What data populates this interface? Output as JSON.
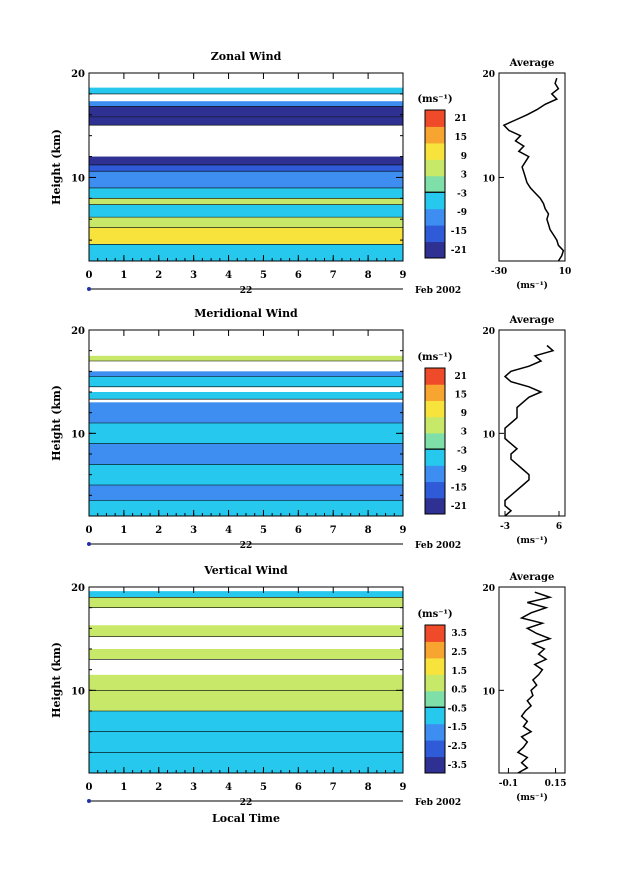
{
  "figure": {
    "xlabel_bottom": "Local Time",
    "date_label": "Feb 2002",
    "day_label": "22"
  },
  "chart_data": [
    {
      "type": "heatmap",
      "title": "Zonal Wind",
      "ylabel": "Height (km)",
      "xlim": [
        0,
        9
      ],
      "ylim": [
        2,
        20
      ],
      "x_ticks": [
        0,
        1,
        2,
        3,
        4,
        5,
        6,
        7,
        8,
        9
      ],
      "y_ticks": [
        10,
        20
      ],
      "colorbar": {
        "unit_label": "(ms⁻¹)",
        "ticks": [
          21,
          15,
          9,
          3,
          -3,
          -9,
          -15,
          -21
        ]
      },
      "bands": [
        {
          "y0": 2.0,
          "y1": 3.6,
          "value": -3
        },
        {
          "y0": 3.6,
          "y1": 5.2,
          "value": 9
        },
        {
          "y0": 5.2,
          "y1": 6.2,
          "value": 3
        },
        {
          "y0": 6.2,
          "y1": 7.4,
          "value": -3
        },
        {
          "y0": 7.4,
          "y1": 8.0,
          "value": 3
        },
        {
          "y0": 8.0,
          "y1": 9.0,
          "value": -3
        },
        {
          "y0": 9.0,
          "y1": 10.6,
          "value": -9
        },
        {
          "y0": 10.6,
          "y1": 11.2,
          "value": -15
        },
        {
          "y0": 11.2,
          "y1": 12.0,
          "value": -21
        },
        {
          "y0": 15.0,
          "y1": 15.8,
          "value": -27
        },
        {
          "y0": 15.8,
          "y1": 16.8,
          "value": -21
        },
        {
          "y0": 16.8,
          "y1": 17.3,
          "value": -9
        },
        {
          "y0": 18.0,
          "y1": 18.6,
          "value": -3
        }
      ],
      "profile": {
        "title": "Average",
        "xlabel": "(ms⁻¹)",
        "xlim": [
          -30,
          10
        ],
        "x_ticks": [
          -30,
          10
        ],
        "y": [
          2,
          2.5,
          3,
          3.5,
          4,
          4.5,
          5,
          5.5,
          6,
          6.5,
          7,
          7.5,
          8,
          8.5,
          9,
          9.5,
          10,
          10.5,
          11,
          11.5,
          12,
          12.5,
          13,
          13.5,
          14,
          14.5,
          15,
          15.5,
          16,
          16.5,
          17,
          17.5,
          18,
          18.5,
          19,
          19.5
        ],
        "x": [
          6,
          8,
          9,
          6,
          5,
          3,
          1,
          0,
          -1,
          0,
          -2,
          -3,
          -5,
          -8,
          -11,
          -13,
          -14,
          -15,
          -16,
          -14,
          -12,
          -18,
          -15,
          -20,
          -17,
          -24,
          -27,
          -20,
          -13,
          -7,
          -2,
          5,
          2,
          6,
          4,
          5
        ]
      }
    },
    {
      "type": "heatmap",
      "title": "Meridional Wind",
      "ylabel": "Height (km)",
      "xlim": [
        0,
        9
      ],
      "ylim": [
        2,
        20
      ],
      "x_ticks": [
        0,
        1,
        2,
        3,
        4,
        5,
        6,
        7,
        8,
        9
      ],
      "y_ticks": [
        10,
        20
      ],
      "colorbar": {
        "unit_label": "(ms⁻¹)",
        "ticks": [
          21,
          15,
          9,
          3,
          -3,
          -9,
          -15,
          -21
        ]
      },
      "bands": [
        {
          "y0": 2.0,
          "y1": 3.5,
          "value": -3
        },
        {
          "y0": 3.5,
          "y1": 5.0,
          "value": -9
        },
        {
          "y0": 5.0,
          "y1": 7.0,
          "value": -3
        },
        {
          "y0": 7.0,
          "y1": 9.0,
          "value": -9
        },
        {
          "y0": 9.0,
          "y1": 11.0,
          "value": -3
        },
        {
          "y0": 11.0,
          "y1": 13.0,
          "value": -9
        },
        {
          "y0": 13.3,
          "y1": 14.0,
          "value": -3
        },
        {
          "y0": 14.5,
          "y1": 15.5,
          "value": -3
        },
        {
          "y0": 15.5,
          "y1": 16.0,
          "value": -9
        },
        {
          "y0": 17.0,
          "y1": 17.5,
          "value": 3
        }
      ],
      "profile": {
        "title": "Average",
        "xlabel": "(ms⁻¹)",
        "xlim": [
          -4,
          7
        ],
        "x_ticks": [
          -3,
          6
        ],
        "y": [
          2,
          2.5,
          3,
          3.5,
          4,
          4.5,
          5,
          5.5,
          6,
          6.5,
          7,
          7.5,
          8,
          8.5,
          9,
          9.5,
          10,
          10.5,
          11,
          11.5,
          12,
          12.5,
          13,
          13.5,
          14,
          14.5,
          15,
          15.5,
          16,
          16.5,
          17,
          17.5,
          18,
          18.5
        ],
        "x": [
          -3,
          -2,
          -3,
          -3,
          -2,
          -1,
          0,
          1,
          1,
          0,
          -1,
          -2,
          -2,
          -1,
          -2,
          -3,
          -3,
          -3,
          -2,
          -1,
          -1,
          -1,
          0,
          1,
          3,
          1,
          -2,
          -3,
          -2,
          1,
          3,
          2,
          5,
          4
        ]
      }
    },
    {
      "type": "heatmap",
      "title": "Vertical Wind",
      "ylabel": "Height (km)",
      "xlim": [
        0,
        9
      ],
      "ylim": [
        2,
        20
      ],
      "x_ticks": [
        0,
        1,
        2,
        3,
        4,
        5,
        6,
        7,
        8,
        9
      ],
      "y_ticks": [
        10,
        20
      ],
      "colorbar": {
        "unit_label": "(ms⁻¹)",
        "ticks": [
          3.5,
          2.5,
          1.5,
          0.5,
          -0.5,
          -1.5,
          -2.5,
          -3.5
        ]
      },
      "bands": [
        {
          "y0": 2.0,
          "y1": 4.0,
          "value": -0.5
        },
        {
          "y0": 4.0,
          "y1": 6.0,
          "value": -0.5
        },
        {
          "y0": 6.0,
          "y1": 8.0,
          "value": -0.5
        },
        {
          "y0": 8.0,
          "y1": 10.0,
          "value": 0.5
        },
        {
          "y0": 10.0,
          "y1": 11.5,
          "value": 0.5
        },
        {
          "y0": 13.0,
          "y1": 14.0,
          "value": 0.5
        },
        {
          "y0": 15.2,
          "y1": 16.3,
          "value": 0.5
        },
        {
          "y0": 18.0,
          "y1": 19.0,
          "value": 0.5
        },
        {
          "y0": 19.0,
          "y1": 19.6,
          "value": -0.5
        }
      ],
      "profile": {
        "title": "Average",
        "xlabel": "(ms⁻¹)",
        "xlim": [
          -0.15,
          0.2
        ],
        "x_ticks": [
          -0.1,
          0.15
        ],
        "y": [
          2,
          2.5,
          3,
          3.5,
          4,
          4.5,
          5,
          5.5,
          6,
          6.5,
          7,
          7.5,
          8,
          8.5,
          9,
          9.5,
          10,
          10.5,
          11,
          11.5,
          12,
          12.5,
          13,
          13.5,
          14,
          14.5,
          15,
          15.5,
          16,
          16.5,
          17,
          17.5,
          18,
          18.5,
          19,
          19.5
        ],
        "x": [
          -0.05,
          0.0,
          -0.03,
          0.0,
          -0.05,
          -0.02,
          0.0,
          -0.03,
          0.02,
          -0.02,
          0.0,
          -0.03,
          -0.01,
          0.02,
          0.0,
          0.03,
          0.02,
          0.05,
          0.03,
          0.06,
          0.08,
          0.04,
          0.1,
          0.06,
          0.09,
          0.03,
          0.12,
          0.05,
          0.0,
          0.08,
          -0.03,
          0.02,
          0.1,
          0.0,
          0.12,
          0.04
        ]
      }
    }
  ]
}
